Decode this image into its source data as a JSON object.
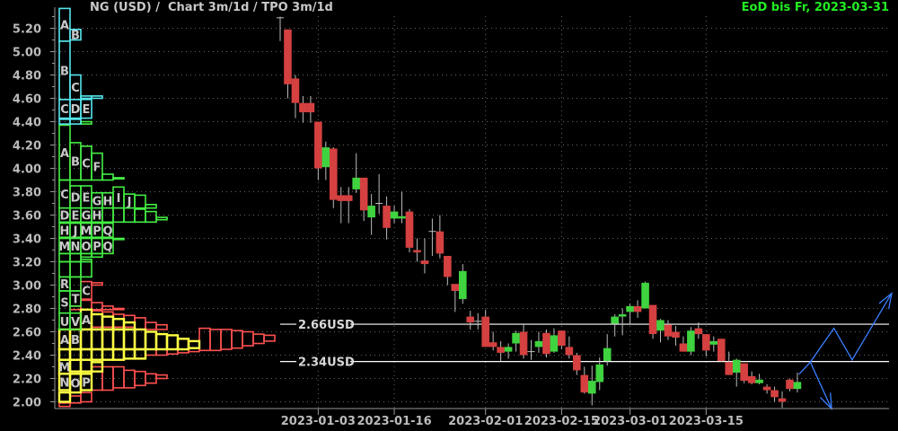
{
  "header": {
    "title": "NG (USD) /  Chart 3m/1d / TPO 3m/1d",
    "status": "EoD bis Fr, 2023-03-31"
  },
  "colors": {
    "background": "#000000",
    "axis_text": "#bbbbbb",
    "up": "#3fd33f",
    "down": "#d54040",
    "wick": "#bbbbbb",
    "level_line": "#ffffff",
    "scenario": "#3a7fff",
    "tpo_cyan": "#55e6ee",
    "tpo_green": "#44ee44",
    "tpo_yellow": "#ffff44",
    "tpo_red": "#ff5050",
    "status_text": "#22ee22"
  },
  "chart_data": {
    "type": "candlestick",
    "title": "NG (USD) /  Chart 3m/1d / TPO 3m/1d",
    "ylim": [
      1.94,
      5.38
    ],
    "yticks": [
      "2.00",
      "2.20",
      "2.40",
      "2.60",
      "2.80",
      "3.00",
      "3.20",
      "3.40",
      "3.60",
      "3.80",
      "4.00",
      "4.20",
      "4.40",
      "4.60",
      "4.80",
      "5.00",
      "5.20"
    ],
    "grid": true,
    "xticks": [
      {
        "label": "2023-01-03",
        "index": 5
      },
      {
        "label": "2023-01-16",
        "index": 15
      },
      {
        "label": "2023-02-01",
        "index": 27
      },
      {
        "label": "2023-02-15",
        "index": 37
      },
      {
        "label": "2023-03-01",
        "index": 46
      },
      {
        "label": "2023-03-15",
        "index": 56
      }
    ],
    "candles_ohlc": [
      [
        5.29,
        5.3,
        5.09,
        5.29
      ],
      [
        5.19,
        5.19,
        4.6,
        4.72
      ],
      [
        4.77,
        4.8,
        4.43,
        4.56
      ],
      [
        4.56,
        4.62,
        4.39,
        4.48
      ],
      [
        4.56,
        4.62,
        4.39,
        4.48
      ],
      [
        4.4,
        4.4,
        3.9,
        4.0
      ],
      [
        4.01,
        4.23,
        3.9,
        4.18
      ],
      [
        4.17,
        4.18,
        3.66,
        3.73
      ],
      [
        3.77,
        3.84,
        3.53,
        3.72
      ],
      [
        3.77,
        3.84,
        3.53,
        3.72
      ],
      [
        3.82,
        4.13,
        3.79,
        3.92
      ],
      [
        3.92,
        3.92,
        3.55,
        3.64
      ],
      [
        3.58,
        3.78,
        3.43,
        3.68
      ],
      [
        3.7,
        3.95,
        3.61,
        3.7
      ],
      [
        3.68,
        3.76,
        3.39,
        3.49
      ],
      [
        3.57,
        3.68,
        3.53,
        3.63
      ],
      [
        3.57,
        3.8,
        3.53,
        3.59
      ],
      [
        3.63,
        3.65,
        3.28,
        3.32
      ],
      [
        3.3,
        3.4,
        3.2,
        3.28
      ],
      [
        3.21,
        3.4,
        3.1,
        3.18
      ],
      [
        3.46,
        3.57,
        3.25,
        3.46
      ],
      [
        3.46,
        3.6,
        3.23,
        3.27
      ],
      [
        3.25,
        3.25,
        3.0,
        3.07
      ],
      [
        3.01,
        3.01,
        2.77,
        2.95
      ],
      [
        2.88,
        3.18,
        2.84,
        3.12
      ],
      [
        2.73,
        2.78,
        2.62,
        2.68
      ],
      [
        2.69,
        2.76,
        2.62,
        2.69
      ],
      [
        2.73,
        2.79,
        2.47,
        2.47
      ],
      [
        2.51,
        2.6,
        2.44,
        2.47
      ],
      [
        2.47,
        2.52,
        2.35,
        2.42
      ],
      [
        2.43,
        2.5,
        2.37,
        2.47
      ],
      [
        2.5,
        2.61,
        2.43,
        2.59
      ],
      [
        2.6,
        2.66,
        2.37,
        2.4
      ],
      [
        2.42,
        2.53,
        2.36,
        2.43
      ],
      [
        2.47,
        2.6,
        2.42,
        2.52
      ],
      [
        2.59,
        2.62,
        2.38,
        2.41
      ],
      [
        2.43,
        2.63,
        2.42,
        2.57
      ],
      [
        2.61,
        2.61,
        2.45,
        2.48
      ],
      [
        2.47,
        2.56,
        2.37,
        2.4
      ],
      [
        2.4,
        2.42,
        2.23,
        2.27
      ],
      [
        2.23,
        2.3,
        2.07,
        2.08
      ],
      [
        2.07,
        2.31,
        1.97,
        2.18
      ],
      [
        2.17,
        2.38,
        2.1,
        2.32
      ],
      [
        2.35,
        2.58,
        2.31,
        2.46
      ],
      [
        2.67,
        2.75,
        2.56,
        2.73
      ],
      [
        2.73,
        2.8,
        2.57,
        2.75
      ],
      [
        2.77,
        2.84,
        2.67,
        2.82
      ],
      [
        2.82,
        2.87,
        2.72,
        2.77
      ],
      [
        2.8,
        3.03,
        2.8,
        3.02
      ],
      [
        2.83,
        2.83,
        2.54,
        2.58
      ],
      [
        2.61,
        2.71,
        2.51,
        2.7
      ],
      [
        2.66,
        2.7,
        2.53,
        2.56
      ],
      [
        2.6,
        2.65,
        2.48,
        2.55
      ],
      [
        2.5,
        2.56,
        2.43,
        2.43
      ],
      [
        2.43,
        2.64,
        2.4,
        2.61
      ],
      [
        2.63,
        2.68,
        2.54,
        2.58
      ],
      [
        2.58,
        2.58,
        2.39,
        2.44
      ],
      [
        2.49,
        2.56,
        2.43,
        2.52
      ],
      [
        2.54,
        2.54,
        2.34,
        2.35
      ],
      [
        2.34,
        2.43,
        2.23,
        2.23
      ],
      [
        2.25,
        2.37,
        2.13,
        2.36
      ],
      [
        2.33,
        2.33,
        2.16,
        2.18
      ],
      [
        2.22,
        2.26,
        2.15,
        2.16
      ],
      [
        2.16,
        2.24,
        2.15,
        2.19
      ],
      [
        2.13,
        2.15,
        2.07,
        2.1
      ],
      [
        2.1,
        2.13,
        2.0,
        2.04
      ],
      [
        2.03,
        2.09,
        1.95,
        2.0
      ],
      [
        2.19,
        2.2,
        2.09,
        2.11
      ],
      [
        2.11,
        2.25,
        2.08,
        2.17
      ]
    ],
    "levels": [
      {
        "label": "2.66USD",
        "price": 2.665
      },
      {
        "label": "2.34USD",
        "price": 2.345
      }
    ],
    "scenario_paths": [
      {
        "points": [
          [
            68.2,
            2.235
          ],
          [
            69.7,
            2.34
          ],
          [
            72.8,
            2.63
          ],
          [
            75.2,
            2.36
          ],
          [
            80.4,
            2.93
          ]
        ],
        "arrow": "end"
      },
      {
        "points": [
          [
            69.7,
            2.34
          ],
          [
            72.5,
            1.94
          ]
        ],
        "arrow": "end"
      }
    ],
    "tpo_profile": {
      "blocks": [
        [
          "r",
          2,
          2.88,
          3.03,
          "C"
        ],
        [
          "r",
          3,
          3.0,
          3.02,
          ""
        ],
        [
          "r",
          1,
          2.79,
          2.82,
          ""
        ],
        [
          "r",
          2,
          2.79,
          2.87,
          ""
        ],
        [
          "r",
          3,
          2.79,
          2.85,
          ""
        ],
        [
          "r",
          4,
          2.79,
          2.82,
          ""
        ],
        [
          "r",
          5,
          2.79,
          2.8,
          ""
        ],
        [
          "r",
          3,
          2.64,
          2.78,
          ""
        ],
        [
          "r",
          4,
          2.64,
          2.77,
          ""
        ],
        [
          "r",
          5,
          2.64,
          2.75,
          ""
        ],
        [
          "r",
          6,
          2.64,
          2.74,
          ""
        ],
        [
          "r",
          7,
          2.62,
          2.72,
          ""
        ],
        [
          "r",
          8,
          2.62,
          2.68,
          ""
        ],
        [
          "r",
          9,
          2.62,
          2.66,
          ""
        ],
        [
          "r",
          13,
          2.44,
          2.63,
          ""
        ],
        [
          "r",
          14,
          2.44,
          2.62,
          ""
        ],
        [
          "r",
          15,
          2.45,
          2.62,
          ""
        ],
        [
          "r",
          16,
          2.46,
          2.61,
          ""
        ],
        [
          "r",
          17,
          2.48,
          2.6,
          ""
        ],
        [
          "r",
          18,
          2.5,
          2.58,
          ""
        ],
        [
          "r",
          19,
          2.52,
          2.57,
          ""
        ],
        [
          "r",
          8,
          2.4,
          2.45,
          ""
        ],
        [
          "r",
          9,
          2.4,
          2.45,
          ""
        ],
        [
          "r",
          10,
          2.41,
          2.45,
          ""
        ],
        [
          "r",
          11,
          2.42,
          2.45,
          ""
        ],
        [
          "r",
          12,
          2.43,
          2.46,
          ""
        ],
        [
          "r",
          3,
          2.1,
          2.3,
          ""
        ],
        [
          "r",
          4,
          2.1,
          2.3,
          ""
        ],
        [
          "r",
          5,
          2.12,
          2.3,
          ""
        ],
        [
          "r",
          6,
          2.12,
          2.27,
          ""
        ],
        [
          "r",
          7,
          2.14,
          2.26,
          ""
        ],
        [
          "r",
          8,
          2.16,
          2.24,
          ""
        ],
        [
          "r",
          9,
          2.2,
          2.23,
          ""
        ],
        [
          "r",
          1,
          1.99,
          2.05,
          ""
        ],
        [
          "r",
          2,
          2.0,
          2.08,
          ""
        ],
        [
          "r",
          0,
          1.96,
          1.99,
          ""
        ],
        [
          "y",
          2,
          2.62,
          2.79,
          "A"
        ],
        [
          "y",
          3,
          2.62,
          2.75,
          ""
        ],
        [
          "y",
          4,
          2.62,
          2.73,
          ""
        ],
        [
          "y",
          5,
          2.62,
          2.71,
          ""
        ],
        [
          "y",
          6,
          2.62,
          2.68,
          ""
        ],
        [
          "y",
          0,
          2.45,
          2.62,
          "A"
        ],
        [
          "y",
          1,
          2.45,
          2.62,
          "B"
        ],
        [
          "y",
          2,
          2.45,
          2.62,
          ""
        ],
        [
          "y",
          3,
          2.45,
          2.62,
          ""
        ],
        [
          "y",
          4,
          2.45,
          2.62,
          ""
        ],
        [
          "y",
          5,
          2.45,
          2.62,
          ""
        ],
        [
          "y",
          6,
          2.45,
          2.62,
          ""
        ],
        [
          "y",
          7,
          2.45,
          2.62,
          ""
        ],
        [
          "y",
          8,
          2.45,
          2.6,
          ""
        ],
        [
          "y",
          9,
          2.45,
          2.58,
          ""
        ],
        [
          "y",
          10,
          2.45,
          2.57,
          ""
        ],
        [
          "y",
          11,
          2.45,
          2.54,
          ""
        ],
        [
          "y",
          12,
          2.46,
          2.52,
          ""
        ],
        [
          "y",
          0,
          2.36,
          2.45,
          ""
        ],
        [
          "y",
          1,
          2.36,
          2.45,
          ""
        ],
        [
          "y",
          2,
          2.36,
          2.45,
          ""
        ],
        [
          "y",
          3,
          2.36,
          2.45,
          ""
        ],
        [
          "y",
          4,
          2.36,
          2.45,
          ""
        ],
        [
          "y",
          5,
          2.36,
          2.45,
          ""
        ],
        [
          "y",
          6,
          2.37,
          2.45,
          ""
        ],
        [
          "y",
          7,
          2.37,
          2.45,
          ""
        ],
        [
          "y",
          0,
          2.24,
          2.36,
          "M"
        ],
        [
          "y",
          1,
          2.26,
          2.36,
          ""
        ],
        [
          "y",
          2,
          2.26,
          2.36,
          ""
        ],
        [
          "y",
          3,
          2.26,
          2.34,
          ""
        ],
        [
          "y",
          0,
          2.1,
          2.24,
          "N"
        ],
        [
          "y",
          1,
          2.08,
          2.24,
          "O"
        ],
        [
          "y",
          2,
          2.1,
          2.24,
          "P"
        ],
        [
          "y",
          0,
          2.0,
          2.08,
          ""
        ],
        [
          "g",
          2,
          4.38,
          4.4,
          ""
        ],
        [
          "g",
          0,
          3.9,
          4.37,
          "A"
        ],
        [
          "g",
          1,
          3.9,
          4.22,
          "B"
        ],
        [
          "g",
          2,
          3.9,
          4.19,
          "C"
        ],
        [
          "g",
          3,
          3.9,
          4.13,
          "F"
        ],
        [
          "g",
          4,
          3.9,
          3.95,
          ""
        ],
        [
          "g",
          5,
          3.91,
          3.92,
          ""
        ],
        [
          "g",
          0,
          3.66,
          3.9,
          "C"
        ],
        [
          "g",
          1,
          3.66,
          3.85,
          "D"
        ],
        [
          "g",
          2,
          3.66,
          3.85,
          "E"
        ],
        [
          "g",
          3,
          3.66,
          3.79,
          "G"
        ],
        [
          "g",
          4,
          3.66,
          3.79,
          "H"
        ],
        [
          "g",
          5,
          3.66,
          3.84,
          "I"
        ],
        [
          "g",
          6,
          3.66,
          3.78,
          "J"
        ],
        [
          "g",
          7,
          3.66,
          3.77,
          ""
        ],
        [
          "g",
          8,
          3.66,
          3.69,
          ""
        ],
        [
          "g",
          0,
          3.54,
          3.66,
          "D"
        ],
        [
          "g",
          1,
          3.54,
          3.66,
          "E"
        ],
        [
          "g",
          2,
          3.54,
          3.66,
          "G"
        ],
        [
          "g",
          3,
          3.54,
          3.66,
          "H"
        ],
        [
          "g",
          4,
          3.54,
          3.66,
          ""
        ],
        [
          "g",
          5,
          3.54,
          3.66,
          ""
        ],
        [
          "g",
          6,
          3.54,
          3.66,
          ""
        ],
        [
          "g",
          7,
          3.54,
          3.65,
          ""
        ],
        [
          "g",
          8,
          3.54,
          3.63,
          ""
        ],
        [
          "g",
          9,
          3.56,
          3.58,
          ""
        ],
        [
          "g",
          0,
          3.41,
          3.53,
          "H"
        ],
        [
          "g",
          1,
          3.41,
          3.53,
          "J"
        ],
        [
          "g",
          2,
          3.41,
          3.53,
          "M"
        ],
        [
          "g",
          3,
          3.41,
          3.53,
          "P"
        ],
        [
          "g",
          4,
          3.41,
          3.53,
          "Q"
        ],
        [
          "g",
          5,
          3.39,
          3.4,
          ""
        ],
        [
          "g",
          0,
          3.27,
          3.4,
          "M"
        ],
        [
          "g",
          1,
          3.27,
          3.4,
          "N"
        ],
        [
          "g",
          2,
          3.27,
          3.4,
          "O"
        ],
        [
          "g",
          3,
          3.27,
          3.4,
          "P"
        ],
        [
          "g",
          4,
          3.27,
          3.4,
          "Q"
        ],
        [
          "g",
          2,
          3.24,
          3.27,
          ""
        ],
        [
          "g",
          3,
          3.24,
          3.27,
          ""
        ],
        [
          "g",
          0,
          3.2,
          3.27,
          ""
        ],
        [
          "g",
          1,
          3.2,
          3.27,
          ""
        ],
        [
          "g",
          2,
          3.2,
          3.22,
          ""
        ],
        [
          "g",
          0,
          3.07,
          3.2,
          ""
        ],
        [
          "g",
          1,
          3.07,
          3.2,
          ""
        ],
        [
          "g",
          2,
          3.07,
          3.2,
          ""
        ],
        [
          "g",
          0,
          2.95,
          3.07,
          "R"
        ],
        [
          "g",
          1,
          2.95,
          3.07,
          ""
        ],
        [
          "g",
          0,
          2.76,
          2.95,
          "S"
        ],
        [
          "g",
          1,
          2.82,
          2.95,
          "T"
        ],
        [
          "g",
          0,
          2.62,
          2.76,
          "U"
        ],
        [
          "g",
          1,
          2.62,
          2.76,
          "V"
        ],
        [
          "c",
          0,
          5.09,
          5.37,
          "A"
        ],
        [
          "c",
          1,
          5.1,
          5.19,
          "B"
        ],
        [
          "c",
          0,
          4.59,
          5.09,
          "B"
        ],
        [
          "c",
          1,
          4.59,
          4.8,
          "C"
        ],
        [
          "c",
          2,
          4.6,
          4.62,
          ""
        ],
        [
          "c",
          3,
          4.6,
          4.62,
          ""
        ],
        [
          "c",
          0,
          4.43,
          4.59,
          "C"
        ],
        [
          "c",
          1,
          4.43,
          4.59,
          "D"
        ],
        [
          "c",
          2,
          4.43,
          4.59,
          "E"
        ],
        [
          "c",
          0,
          4.38,
          4.42,
          ""
        ],
        [
          "c",
          1,
          4.38,
          4.42,
          ""
        ]
      ]
    }
  }
}
